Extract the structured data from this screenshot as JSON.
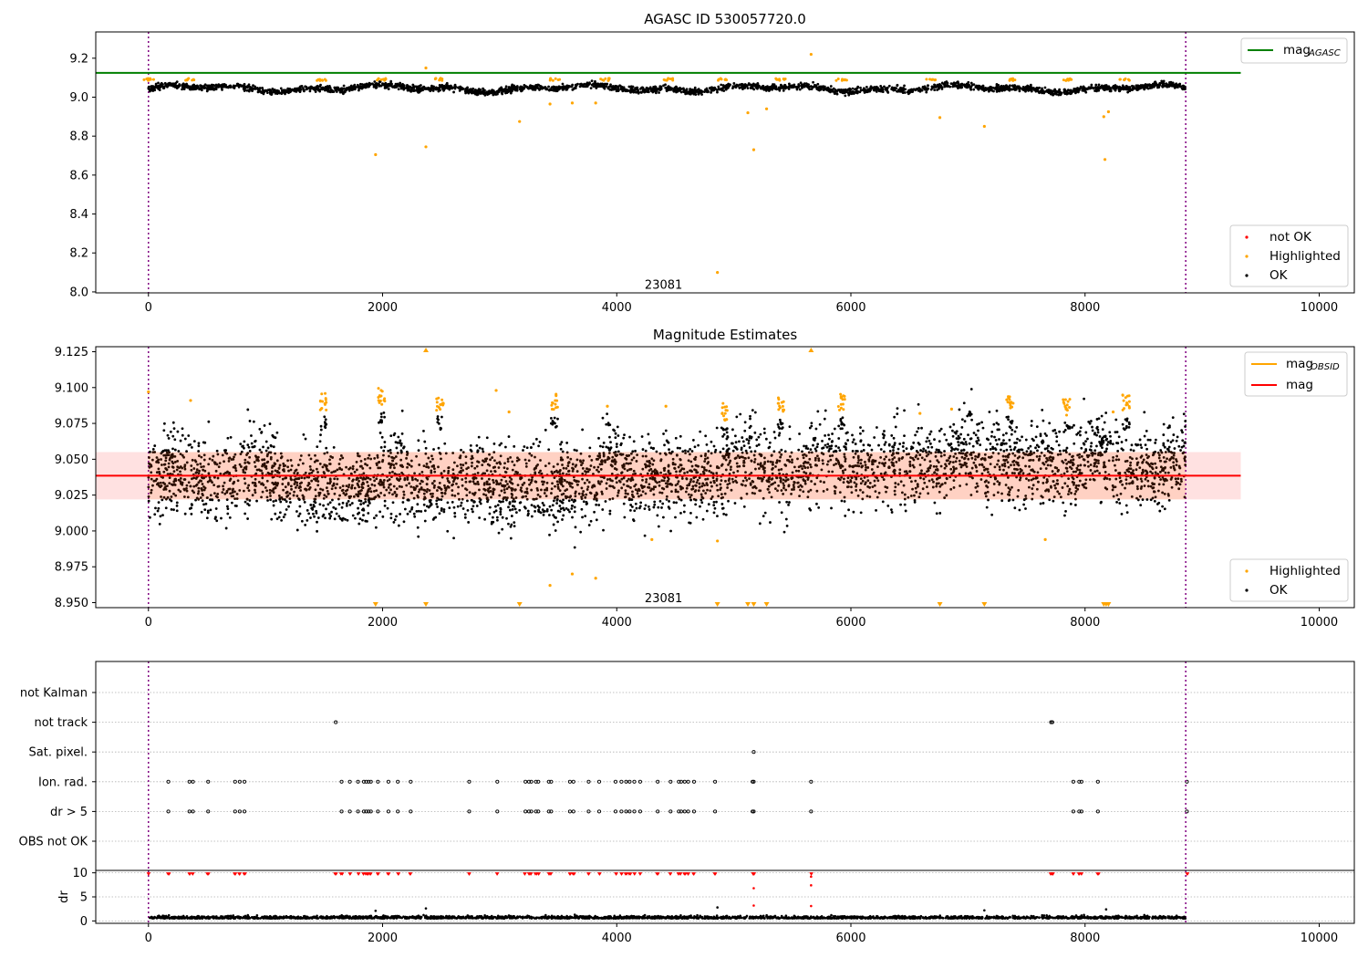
{
  "chart_data": [
    {
      "type": "scatter",
      "title": "AGASC ID 530057720.0",
      "xlim": [
        -450,
        10300
      ],
      "ylim": [
        7.995,
        9.335
      ],
      "xticks": [
        0,
        2000,
        4000,
        6000,
        8000,
        10000
      ],
      "xtick_labels": [
        "0",
        "2000",
        "4000",
        "6000",
        "8000",
        "10000"
      ],
      "yticks": [
        8.0,
        8.2,
        8.4,
        8.6,
        8.8,
        9.0,
        9.2
      ],
      "ytick_labels": [
        "8.0",
        "8.2",
        "8.4",
        "8.6",
        "8.8",
        "9.0",
        "9.2"
      ],
      "vlines": [
        0,
        8860
      ],
      "obsid_label": {
        "x": 4400,
        "y": 8.035,
        "text": "23081"
      },
      "mag_agasc": {
        "value": 9.125,
        "x_range": [
          -450,
          9330
        ],
        "color": "#008000"
      },
      "ok_band": {
        "baseline": 9.045,
        "x_range": [
          0,
          8860
        ]
      },
      "highlighted_points": [
        {
          "x": 1940,
          "y": 8.705
        },
        {
          "x": 2370,
          "y": 8.745
        },
        {
          "x": 2370,
          "y": 9.15
        },
        {
          "x": 3170,
          "y": 8.875
        },
        {
          "x": 3430,
          "y": 8.965
        },
        {
          "x": 3620,
          "y": 8.97
        },
        {
          "x": 3820,
          "y": 8.97
        },
        {
          "x": 4860,
          "y": 8.1
        },
        {
          "x": 5120,
          "y": 8.92
        },
        {
          "x": 5170,
          "y": 8.73
        },
        {
          "x": 5280,
          "y": 8.94
        },
        {
          "x": 5660,
          "y": 9.22
        },
        {
          "x": 6760,
          "y": 8.895
        },
        {
          "x": 7140,
          "y": 8.85
        },
        {
          "x": 8160,
          "y": 8.9
        },
        {
          "x": 8170,
          "y": 8.68
        },
        {
          "x": 8200,
          "y": 8.925
        }
      ],
      "highlighted_clusters_x": [
        0,
        350,
        1480,
        1990,
        2480,
        3470,
        3900,
        4440,
        4900,
        5400,
        5920,
        6680,
        7360,
        7840,
        8340
      ],
      "legend_top": [
        {
          "label": "mag",
          "subscript": "AGASC",
          "color": "#008000",
          "kind": "line"
        }
      ],
      "legend_bottom": [
        {
          "label": "not OK",
          "color": "#ff0000",
          "kind": "dot"
        },
        {
          "label": "Highlighted",
          "color": "#ffa500",
          "kind": "dot"
        },
        {
          "label": "OK",
          "color": "#000000",
          "kind": "dot"
        }
      ]
    },
    {
      "type": "scatter",
      "title": "Magnitude Estimates",
      "xlim": [
        -450,
        10300
      ],
      "ylim": [
        8.9465,
        9.1285
      ],
      "xticks": [
        0,
        2000,
        4000,
        6000,
        8000,
        10000
      ],
      "xtick_labels": [
        "0",
        "2000",
        "4000",
        "6000",
        "8000",
        "10000"
      ],
      "yticks": [
        8.95,
        8.975,
        9.0,
        9.025,
        9.05,
        9.075,
        9.1,
        9.125
      ],
      "ytick_labels": [
        "8.950",
        "8.975",
        "9.000",
        "9.025",
        "9.050",
        "9.075",
        "9.100",
        "9.125"
      ],
      "vlines": [
        0,
        8860
      ],
      "obsid_label": {
        "x": 4400,
        "y": 8.953,
        "text": "23081"
      },
      "mag": {
        "value": 9.0385,
        "x_range": [
          -450,
          9330
        ],
        "color": "#ff0000"
      },
      "mag_band": {
        "low": 9.022,
        "high": 9.055
      },
      "mag_obsid": {
        "value": 9.039,
        "x_range": [
          0,
          8860
        ],
        "color": "#ffa500"
      },
      "ok_band": {
        "baseline": 9.038,
        "spread": 0.014
      },
      "highlighted_points": [
        {
          "x": 3430,
          "y": 8.962
        },
        {
          "x": 3620,
          "y": 8.97
        },
        {
          "x": 3820,
          "y": 8.967
        },
        {
          "x": 4300,
          "y": 8.994
        },
        {
          "x": 4860,
          "y": 8.993
        },
        {
          "x": 7660,
          "y": 8.994
        },
        {
          "x": 2970,
          "y": 9.098
        },
        {
          "x": 0,
          "y": 9.097
        },
        {
          "x": 360,
          "y": 9.091
        },
        {
          "x": 4420,
          "y": 9.087
        },
        {
          "x": 6590,
          "y": 9.082
        },
        {
          "x": 6860,
          "y": 9.085
        },
        {
          "x": 8240,
          "y": 9.083
        },
        {
          "x": 3080,
          "y": 9.083
        },
        {
          "x": 3920,
          "y": 9.087
        }
      ],
      "highlighted_clusters": [
        {
          "x": 1490,
          "y": 9.09
        },
        {
          "x": 1990,
          "y": 9.094
        },
        {
          "x": 2490,
          "y": 9.09
        },
        {
          "x": 3470,
          "y": 9.09
        },
        {
          "x": 4920,
          "y": 9.083
        },
        {
          "x": 5400,
          "y": 9.088
        },
        {
          "x": 5920,
          "y": 9.09
        },
        {
          "x": 7360,
          "y": 9.09
        },
        {
          "x": 7840,
          "y": 9.086
        },
        {
          "x": 8350,
          "y": 9.09
        }
      ],
      "clipped_high_x": [
        2370,
        5660
      ],
      "clipped_low_x": [
        1940,
        2370,
        3170,
        4860,
        5120,
        5170,
        5280,
        6760,
        7140,
        8160,
        8180,
        8200
      ],
      "legend_top": [
        {
          "label": "mag",
          "subscript": "OBSID",
          "color": "#ffa500",
          "kind": "line"
        },
        {
          "label": "mag",
          "subscript": "",
          "color": "#ff0000",
          "kind": "line"
        }
      ],
      "legend_bottom": [
        {
          "label": "Highlighted",
          "color": "#ffa500",
          "kind": "dot"
        },
        {
          "label": "OK",
          "color": "#000000",
          "kind": "dot"
        }
      ]
    },
    {
      "type": "scatter",
      "xlim": [
        -450,
        10300
      ],
      "xticks": [
        0,
        2000,
        4000,
        6000,
        8000,
        10000
      ],
      "xtick_labels": [
        "0",
        "2000",
        "4000",
        "6000",
        "8000",
        "10000"
      ],
      "vlines": [
        0,
        8860
      ],
      "flag_rows": [
        "not Kalman",
        "not track",
        "Sat. pixel.",
        "Ion. rad.",
        "dr > 5",
        "OBS not OK"
      ],
      "flag_points": {
        "not track": [
          1600,
          7710,
          7720
        ],
        "Sat. pixel.": [
          5170
        ],
        "Ion. rad.": [
          170,
          350,
          380,
          510,
          740,
          780,
          820,
          1650,
          1720,
          1790,
          1840,
          1860,
          1880,
          1900,
          1960,
          2050,
          2130,
          2240,
          2740,
          2980,
          3220,
          3250,
          3270,
          3310,
          3330,
          3420,
          3440,
          3600,
          3630,
          3760,
          3850,
          3990,
          4040,
          4080,
          4110,
          4150,
          4200,
          4350,
          4460,
          4530,
          4550,
          4580,
          4610,
          4660,
          4840,
          5160,
          5170,
          5660,
          7900,
          7950,
          7970,
          8110,
          8870
        ],
        "dr > 5": [
          170,
          350,
          380,
          510,
          740,
          780,
          820,
          1650,
          1720,
          1790,
          1840,
          1860,
          1880,
          1900,
          1960,
          2050,
          2130,
          2240,
          2740,
          2980,
          3220,
          3250,
          3270,
          3310,
          3330,
          3420,
          3440,
          3600,
          3630,
          3760,
          3850,
          3990,
          4040,
          4080,
          4110,
          4150,
          4200,
          4350,
          4460,
          4530,
          4550,
          4580,
          4610,
          4660,
          4840,
          5160,
          5170,
          5660,
          7900,
          7950,
          7970,
          8110,
          8870
        ]
      },
      "dr": {
        "ylabel": "dr",
        "ylim": [
          -0.5,
          10.5
        ],
        "yticks": [
          0,
          5,
          10
        ],
        "ytick_labels": [
          "0",
          "5",
          "10"
        ],
        "ok_baseline": 0.5,
        "capped_value": 9.8,
        "capped_x": [
          0,
          170,
          350,
          380,
          510,
          740,
          780,
          820,
          1600,
          1650,
          1720,
          1790,
          1840,
          1860,
          1880,
          1900,
          1960,
          2050,
          2130,
          2240,
          2740,
          2980,
          3220,
          3250,
          3270,
          3310,
          3330,
          3420,
          3440,
          3600,
          3630,
          3760,
          3850,
          3990,
          4040,
          4080,
          4110,
          4150,
          4200,
          4350,
          4460,
          4530,
          4550,
          4580,
          4610,
          4660,
          4840,
          5160,
          5170,
          5660,
          7710,
          7720,
          7900,
          7950,
          7970,
          8110,
          8870
        ],
        "extra_points": [
          {
            "x": 5170,
            "y": 6.8,
            "color": "#ff0000"
          },
          {
            "x": 5170,
            "y": 3.2,
            "color": "#ff0000"
          },
          {
            "x": 5660,
            "y": 9.2,
            "color": "#ff0000"
          },
          {
            "x": 5660,
            "y": 7.4,
            "color": "#ff0000"
          },
          {
            "x": 5660,
            "y": 3.1,
            "color": "#ff0000"
          },
          {
            "x": 1940,
            "y": 2.1,
            "color": "#000000"
          },
          {
            "x": 2370,
            "y": 2.6,
            "color": "#000000"
          },
          {
            "x": 4860,
            "y": 2.8,
            "color": "#000000"
          },
          {
            "x": 8180,
            "y": 2.4,
            "color": "#000000"
          },
          {
            "x": 7140,
            "y": 2.2,
            "color": "#000000"
          }
        ]
      }
    }
  ]
}
